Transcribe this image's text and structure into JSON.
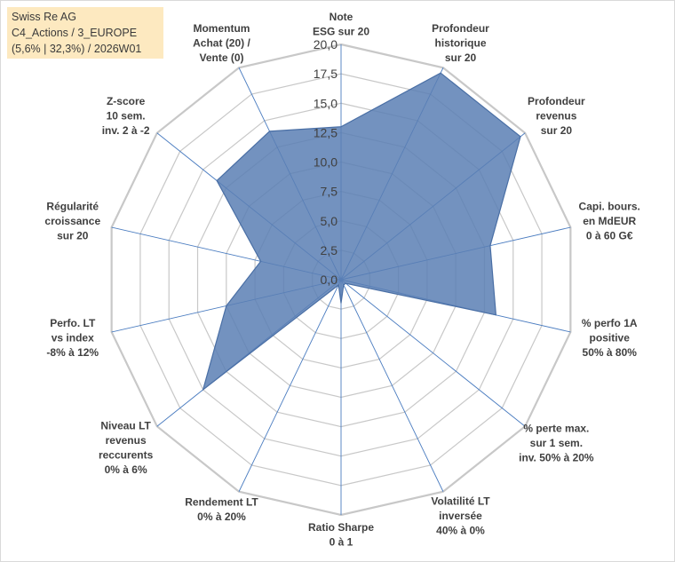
{
  "title": {
    "lines": [
      "Swiss Re AG",
      "C4_Actions / 3_EUROPE",
      "(5,6% | 32,3%) / 2026W01"
    ]
  },
  "chart_data": {
    "type": "radar",
    "series_name": "Swiss Re AG",
    "r_range": [
      0,
      20
    ],
    "r_ticks": [
      "0,0",
      "2,5",
      "5,0",
      "7,5",
      "10,0",
      "12,5",
      "15,0",
      "17,5",
      "20,0"
    ],
    "categories": [
      [
        "Note",
        "ESG sur 20"
      ],
      [
        "Profondeur",
        "historique",
        "sur 20"
      ],
      [
        "Profondeur",
        "revenus",
        "sur 20"
      ],
      [
        "Capi. bours.",
        "en MdEUR",
        "0 à 60 G€"
      ],
      [
        "% perfo 1A",
        "positive",
        "50% à 80%"
      ],
      [
        "% perte max.",
        "sur 1 sem.",
        "inv. 50% à 20%"
      ],
      [
        "Volatilité LT",
        "inversée",
        "40% à 0%"
      ],
      [
        "Ratio Sharpe",
        "0 à 1"
      ],
      [
        "Rendement LT",
        "0% à 20%"
      ],
      [
        "Niveau LT",
        "revenus",
        "reccurents",
        "0% à 6%"
      ],
      [
        "Perfo. LT",
        "vs index",
        "-8% à 12%"
      ],
      [
        "Régularité",
        "croissance",
        "sur 20"
      ],
      [
        "Z-score",
        "10 sem.",
        "inv. 2 à -2"
      ],
      [
        "Momentum",
        "Achat (20) /",
        "Vente (0)"
      ]
    ],
    "values": [
      13.0,
      19.5,
      19.5,
      13.0,
      13.5,
      0.5,
      0.5,
      2.0,
      0.5,
      15.0,
      10.0,
      7.0,
      13.5,
      14.0
    ],
    "colors": {
      "fill": "#5b7fb4",
      "stroke": "#4a6fa5",
      "grid": "#c8c8c8",
      "spoke": "#4a7cc0"
    }
  }
}
